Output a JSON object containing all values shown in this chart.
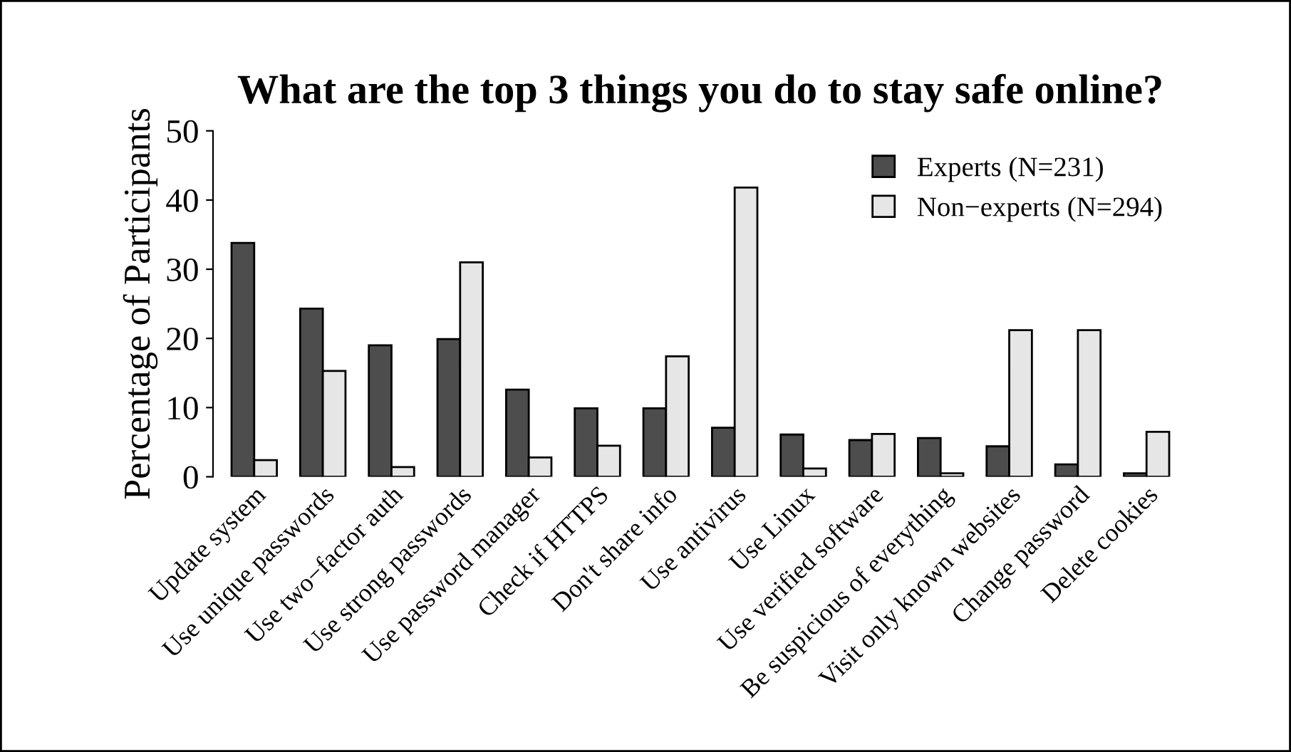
{
  "chart_data": {
    "type": "bar",
    "title": "What are the top 3 things you do to stay safe online?",
    "ylabel": "Percentage of Participants",
    "categories": [
      "Update system",
      "Use unique passwords",
      "Use two−factor auth",
      "Use strong passwords",
      "Use password manager",
      "Check if HTTPS",
      "Don't share info",
      "Use antivirus",
      "Use Linux",
      "Use verified software",
      "Be suspicious of everything",
      "Visit only known websites",
      "Change password",
      "Delete cookies"
    ],
    "series": [
      {
        "name": "Experts (N=231)",
        "color": "#4d4d4d",
        "values": [
          33.8,
          24.3,
          19.0,
          19.9,
          12.6,
          9.9,
          9.9,
          7.1,
          6.1,
          5.3,
          5.6,
          4.4,
          1.8,
          0.5
        ]
      },
      {
        "name": "Non−experts (N=294)",
        "color": "#e6e6e6",
        "values": [
          2.4,
          15.3,
          1.4,
          31.0,
          2.8,
          4.5,
          17.4,
          41.8,
          1.2,
          6.2,
          0.5,
          21.2,
          21.2,
          6.5
        ]
      }
    ],
    "ylim": [
      0,
      50
    ],
    "yticks": [
      0,
      10,
      20,
      30,
      40,
      50
    ],
    "grid": false,
    "legend": "top right"
  }
}
